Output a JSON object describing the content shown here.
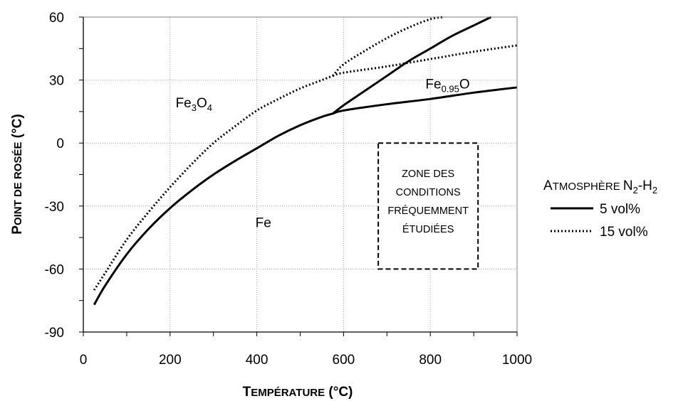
{
  "chart_data": {
    "type": "line",
    "xlabel": {
      "lead": "T",
      "rest": "EMPÉRATURE",
      "unit": " (°C)"
    },
    "ylabel": {
      "lead": "P",
      "rest": "OINT DE ROSÉE",
      "unit": " (°C)"
    },
    "xlim": [
      0,
      1000
    ],
    "ylim": [
      -90,
      60
    ],
    "xticks": [
      0,
      200,
      400,
      600,
      800,
      1000
    ],
    "xtick_labels": [
      "0",
      "200",
      "400",
      "600",
      "800",
      "1000"
    ],
    "yticks": [
      -90,
      -60,
      -30,
      0,
      30,
      60
    ],
    "ytick_labels": [
      "-90",
      "-60",
      "-30",
      "0",
      "30",
      "60"
    ],
    "grid": true,
    "legend": {
      "position": "right",
      "title": {
        "lead": "A",
        "rest": "TMOSPHÈRE ",
        "n": "N",
        "n_sub": "2",
        "dash": "-",
        "h": "H",
        "h_sub": "2"
      },
      "entries": [
        "5 vol%",
        "15 vol%"
      ]
    },
    "series": [
      {
        "name": "5 vol%",
        "style": "solid",
        "segment": "fe_boundary",
        "x": [
          25,
          50,
          100,
          150,
          200,
          250,
          300,
          350,
          400,
          450,
          500,
          550,
          575
        ],
        "y": [
          -77,
          -68,
          -53,
          -41,
          -31,
          -22.5,
          -15,
          -8.5,
          -2.5,
          3.5,
          8.5,
          12.5,
          14
        ]
      },
      {
        "name": "5 vol%",
        "style": "solid",
        "segment": "fe_feo",
        "x": [
          575,
          600,
          700,
          800,
          900,
          1000
        ],
        "y": [
          14,
          15.5,
          18.5,
          21,
          24,
          26.5
        ]
      },
      {
        "name": "5 vol%",
        "style": "solid",
        "segment": "feo_fe3o4",
        "x": [
          575,
          600,
          650,
          700,
          750,
          800,
          850,
          900,
          940
        ],
        "y": [
          14,
          18,
          25,
          32,
          39,
          45,
          51,
          56,
          60
        ]
      },
      {
        "name": "15 vol%",
        "style": "dotted",
        "segment": "fe_boundary",
        "x": [
          25,
          50,
          100,
          150,
          200,
          250,
          300,
          350,
          400,
          450,
          500,
          550,
          575
        ],
        "y": [
          -70,
          -62,
          -46,
          -33,
          -21,
          -10,
          0,
          8,
          15.5,
          21,
          26,
          30,
          32
        ]
      },
      {
        "name": "15 vol%",
        "style": "dotted",
        "segment": "fe_feo",
        "x": [
          575,
          600,
          700,
          800,
          900,
          1000
        ],
        "y": [
          32,
          33.5,
          36.5,
          40,
          43.5,
          46.5
        ]
      },
      {
        "name": "15 vol%",
        "style": "dotted",
        "segment": "feo_fe3o4",
        "x": [
          575,
          600,
          650,
          700,
          750,
          800,
          830
        ],
        "y": [
          32,
          37.5,
          44,
          50,
          55,
          59,
          60
        ]
      }
    ],
    "regions": [
      {
        "text": "Fe",
        "x": 415,
        "y": -40
      },
      {
        "text_base": "Fe",
        "sub1": "3",
        "mid": "O",
        "sub2": "4",
        "x": 255,
        "y": 17
      },
      {
        "text_base": "Fe",
        "sub1": "0.95",
        "mid": "O",
        "x": 840,
        "y": 26
      }
    ],
    "zone": {
      "x": [
        680,
        910
      ],
      "y": [
        -60,
        0
      ],
      "lines": [
        "ZONE DES",
        "CONDITIONS",
        "FRÉQUEMMENT",
        "ÉTUDIÉES"
      ]
    }
  }
}
